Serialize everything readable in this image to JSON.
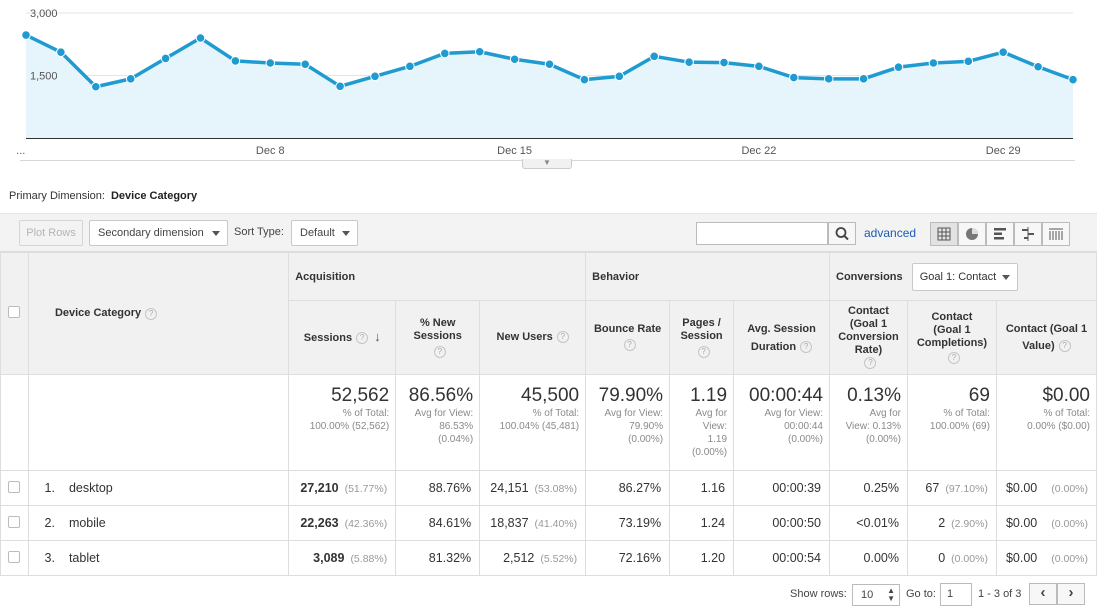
{
  "chart_data": {
    "type": "area",
    "x": [
      "Dec 1",
      "Dec 2",
      "Dec 3",
      "Dec 4",
      "Dec 5",
      "Dec 6",
      "Dec 7",
      "Dec 8",
      "Dec 9",
      "Dec 10",
      "Dec 11",
      "Dec 12",
      "Dec 13",
      "Dec 14",
      "Dec 15",
      "Dec 16",
      "Dec 17",
      "Dec 18",
      "Dec 19",
      "Dec 20",
      "Dec 21",
      "Dec 22",
      "Dec 23",
      "Dec 24",
      "Dec 25",
      "Dec 26",
      "Dec 27",
      "Dec 28",
      "Dec 29",
      "Dec 30",
      "Dec 31"
    ],
    "series": [
      {
        "values": [
          2470,
          2060,
          1230,
          1420,
          1910,
          2400,
          1850,
          1800,
          1770,
          1240,
          1480,
          1720,
          2030,
          2070,
          1890,
          1770,
          1400,
          1480,
          1960,
          1820,
          1810,
          1720,
          1450,
          1420,
          1420,
          1700,
          1800,
          1840,
          2060,
          1710,
          1400
        ]
      }
    ],
    "y_ticks": [
      "3,000",
      "1,500"
    ],
    "x_ticks": [
      "...",
      "Dec 8",
      "Dec 15",
      "Dec 22",
      "Dec 29"
    ],
    "ylim": [
      0,
      3000
    ],
    "line_color": "#1f9bd1",
    "fill_color": "#e6f4fb"
  },
  "primary_dimension": {
    "label": "Primary Dimension:",
    "value": "Device Category"
  },
  "toolbar": {
    "plot_rows": "Plot Rows",
    "secondary_dimension": "Secondary dimension",
    "sort_type_label": "Sort Type:",
    "sort_type_value": "Default",
    "search_value": "",
    "advanced": "advanced"
  },
  "table": {
    "dimension_header": "Device Category",
    "groups": {
      "acquisition": "Acquisition",
      "behavior": "Behavior",
      "conversions": "Conversions"
    },
    "goal_select": "Goal 1: Contact",
    "columns": {
      "sessions": "Sessions",
      "new_sessions": "% New Sessions",
      "new_users": "New Users",
      "bounce_rate": "Bounce Rate",
      "pages_session": "Pages / Session",
      "avg_session": "Avg. Session Duration",
      "conv_rate": "Contact (Goal 1 Conversion Rate)",
      "completions": "Contact (Goal 1 Completions)",
      "value": "Contact (Goal 1 Value)"
    },
    "totals": {
      "sessions": {
        "big": "52,562",
        "l1": "% of Total:",
        "l2": "100.00% (52,562)"
      },
      "new_sessions": {
        "big": "86.56%",
        "l1": "Avg for View:",
        "l2": "86.53%",
        "l3": "(0.04%)"
      },
      "new_users": {
        "big": "45,500",
        "l1": "% of Total:",
        "l2": "100.04% (45,481)"
      },
      "bounce_rate": {
        "big": "79.90%",
        "l1": "Avg for View:",
        "l2": "79.90%",
        "l3": "(0.00%)"
      },
      "pages_session": {
        "big": "1.19",
        "l1": "Avg for",
        "l2": "View:",
        "l3": "1.19",
        "l4": "(0.00%)"
      },
      "avg_session": {
        "big": "00:00:44",
        "l1": "Avg for View:",
        "l2": "00:00:44",
        "l3": "(0.00%)"
      },
      "conv_rate": {
        "big": "0.13%",
        "l1": "Avg for",
        "l2": "View: 0.13%",
        "l3": "(0.00%)"
      },
      "completions": {
        "big": "69",
        "l1": "% of Total:",
        "l2": "100.00% (69)"
      },
      "value": {
        "big": "$0.00",
        "l1": "% of Total:",
        "l2": "0.00% ($0.00)"
      }
    },
    "rows": [
      {
        "num": "1.",
        "device": "desktop",
        "sessions": "27,210",
        "sessions_pct": "(51.77%)",
        "new_sessions": "88.76%",
        "new_users": "24,151",
        "new_users_pct": "(53.08%)",
        "bounce": "86.27%",
        "pages": "1.16",
        "duration": "00:00:39",
        "conv_rate": "0.25%",
        "completions": "67",
        "completions_pct": "(97.10%)",
        "value": "$0.00",
        "value_pct": "(0.00%)"
      },
      {
        "num": "2.",
        "device": "mobile",
        "sessions": "22,263",
        "sessions_pct": "(42.36%)",
        "new_sessions": "84.61%",
        "new_users": "18,837",
        "new_users_pct": "(41.40%)",
        "bounce": "73.19%",
        "pages": "1.24",
        "duration": "00:00:50",
        "conv_rate": "<0.01%",
        "completions": "2",
        "completions_pct": "(2.90%)",
        "value": "$0.00",
        "value_pct": "(0.00%)"
      },
      {
        "num": "3.",
        "device": "tablet",
        "sessions": "3,089",
        "sessions_pct": "(5.88%)",
        "new_sessions": "81.32%",
        "new_users": "2,512",
        "new_users_pct": "(5.52%)",
        "bounce": "72.16%",
        "pages": "1.20",
        "duration": "00:00:54",
        "conv_rate": "0.00%",
        "completions": "0",
        "completions_pct": "(0.00%)",
        "value": "$0.00",
        "value_pct": "(0.00%)"
      }
    ]
  },
  "footer": {
    "show_rows_label": "Show rows:",
    "show_rows_value": "10",
    "goto_label": "Go to:",
    "goto_value": "1",
    "range": "1 - 3 of 3",
    "prev": "‹",
    "next": "›"
  }
}
